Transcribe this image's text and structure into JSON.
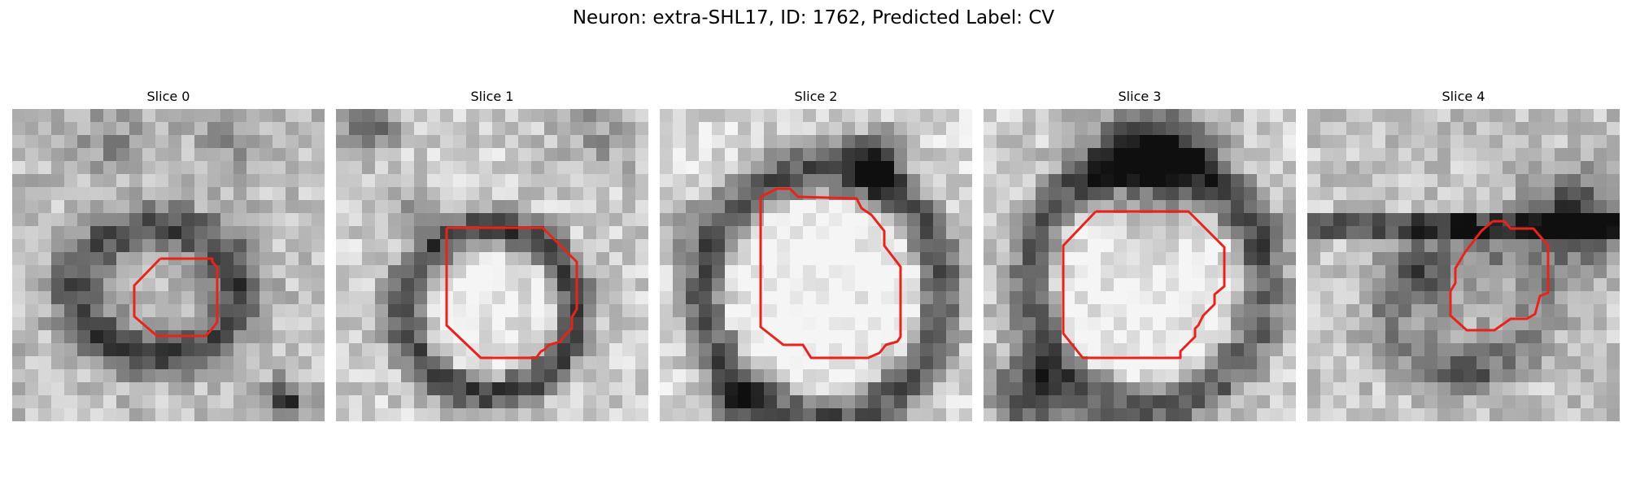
{
  "figure": {
    "title": "Neuron: extra-SHL17, ID: 1762, Predicted Label: CV"
  },
  "panels": [
    {
      "title": "Slice 0"
    },
    {
      "title": "Slice 1"
    },
    {
      "title": "Slice 2"
    },
    {
      "title": "Slice 3"
    },
    {
      "title": "Slice 4"
    }
  ],
  "colors": {
    "contour": "#e8231c",
    "background": "#ffffff"
  }
}
